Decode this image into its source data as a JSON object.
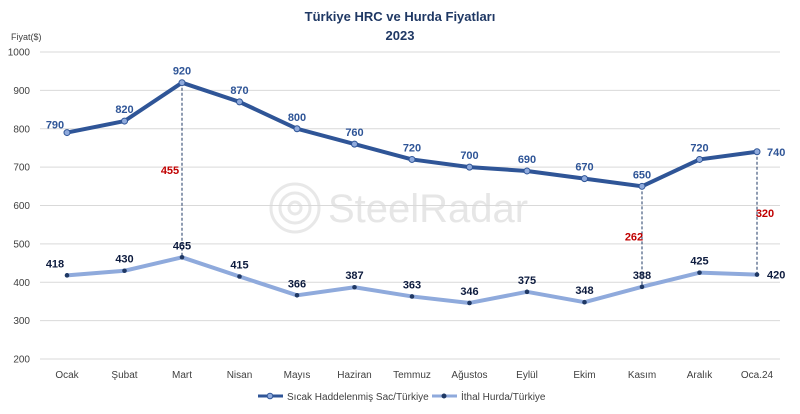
{
  "chart_data": {
    "type": "line",
    "title": "Türkiye HRC ve Hurda Fiyatları",
    "subtitle": "2023",
    "ylabel": "Fiyat($)",
    "xlabel": "",
    "ylim": [
      200,
      1000
    ],
    "yticks": [
      200,
      300,
      400,
      500,
      600,
      700,
      800,
      900,
      1000
    ],
    "grid": true,
    "legend_position": "bottom",
    "categories": [
      "Ocak",
      "Şubat",
      "Mart",
      "Nisan",
      "Mayıs",
      "Haziran",
      "Temmuz",
      "Ağustos",
      "Eylül",
      "Ekim",
      "Kasım",
      "Aralık",
      "Oca.24"
    ],
    "series": [
      {
        "name": "Sıcak Haddelenmiş Sac/Türkiye",
        "color": "#2f5597",
        "values": [
          790,
          820,
          920,
          870,
          800,
          760,
          720,
          700,
          690,
          670,
          650,
          720,
          740
        ]
      },
      {
        "name": "İthal Hurda/Türkiye",
        "color": "#8faadc",
        "values": [
          418,
          430,
          465,
          415,
          366,
          387,
          363,
          346,
          375,
          348,
          388,
          425,
          420
        ]
      }
    ],
    "annotations": [
      {
        "category": "Mart",
        "value": 455,
        "color": "#c00000"
      },
      {
        "category": "Kasım",
        "value": 262,
        "color": "#c00000"
      },
      {
        "category": "Oca.24",
        "value": 320,
        "color": "#c00000"
      }
    ],
    "watermark": "SteelRadar"
  }
}
